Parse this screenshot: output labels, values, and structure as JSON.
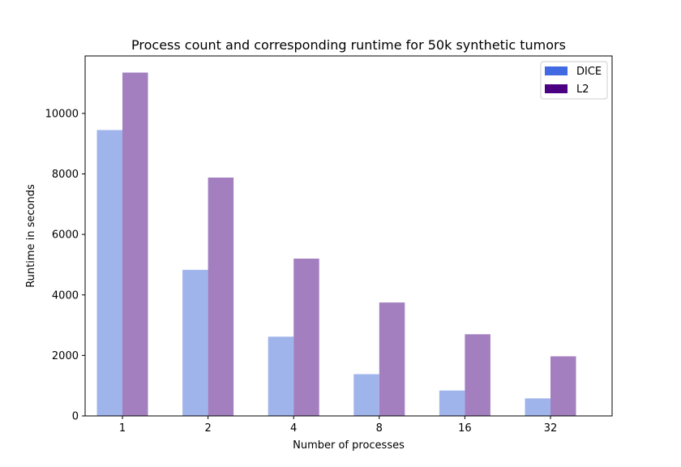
{
  "chart_data": {
    "type": "bar",
    "title": "Process count and corresponding runtime for 50k synthetic tumors",
    "xlabel": "Number of processes",
    "ylabel": "Runtime in seconds",
    "categories": [
      "1",
      "2",
      "4",
      "8",
      "16",
      "32"
    ],
    "series": [
      {
        "name": "DICE",
        "values": [
          9450,
          4830,
          2620,
          1380,
          840,
          580
        ],
        "color": "#4169E1",
        "bar_color": "#A0B4EC"
      },
      {
        "name": "L2",
        "values": [
          11350,
          7880,
          5200,
          3750,
          2700,
          1970
        ],
        "color": "#4B0082",
        "bar_color": "#A37FBF"
      }
    ],
    "yticks": [
      0,
      2000,
      4000,
      6000,
      8000,
      10000
    ],
    "ylim": [
      0,
      11900
    ],
    "grid": false,
    "legend_position": "top-right"
  }
}
